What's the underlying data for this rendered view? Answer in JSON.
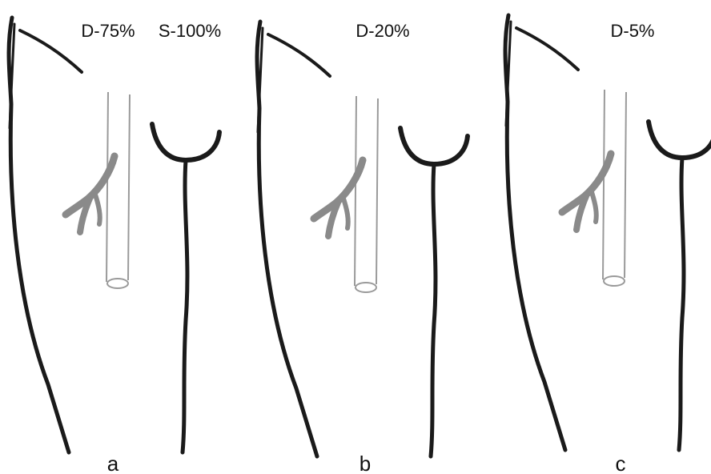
{
  "panels": [
    {
      "labels": [
        "D-75%",
        "S-100%"
      ],
      "letter": "a"
    },
    {
      "labels": [
        "D-20%"
      ],
      "letter": "b"
    },
    {
      "labels": [
        "D-5%"
      ],
      "letter": "c"
    }
  ]
}
